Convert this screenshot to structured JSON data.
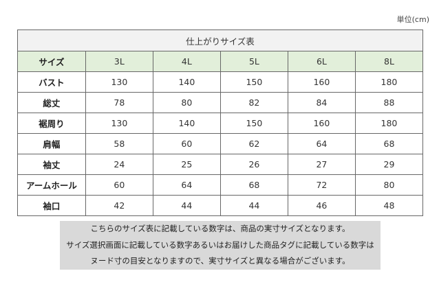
{
  "unit_label": "単位(cm)",
  "table": {
    "title": "仕上がりサイズ表",
    "header": [
      "サイズ",
      "3L",
      "4L",
      "5L",
      "6L",
      "8L"
    ],
    "rows": [
      [
        "バスト",
        "130",
        "140",
        "150",
        "160",
        "180"
      ],
      [
        "総丈",
        "78",
        "80",
        "82",
        "84",
        "88"
      ],
      [
        "裾周り",
        "130",
        "140",
        "150",
        "160",
        "180"
      ],
      [
        "肩幅",
        "58",
        "60",
        "62",
        "64",
        "68"
      ],
      [
        "袖丈",
        "24",
        "25",
        "26",
        "27",
        "29"
      ],
      [
        "アームホール",
        "60",
        "64",
        "68",
        "72",
        "80"
      ],
      [
        "袖口",
        "42",
        "44",
        "44",
        "46",
        "48"
      ]
    ]
  },
  "note": [
    "こちらのサイズ表に記載している数字は、商品の実寸サイズとなります。",
    "サイズ選択画面に記載している数字あるいはお届けした商品タグに記載している数字は",
    "ヌード寸の目安となりますので、実寸サイズと異なる場合がございます。"
  ],
  "colors": {
    "title_bg": "#f2f2f2",
    "header_bg": "#e2efda",
    "note_bg": "#d9d9d9"
  }
}
